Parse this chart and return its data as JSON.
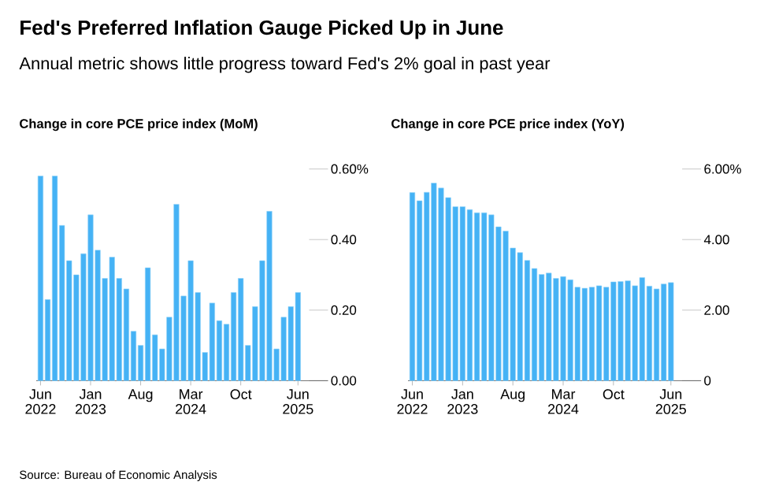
{
  "chart_data": [
    {
      "type": "bar",
      "title": "Fed's Preferred Inflation Gauge Picked Up in June",
      "subtitle": "Annual metric shows little progress toward Fed's 2% goal in past year",
      "ylabel": "Change in core PCE price index (MoM)",
      "annotations": [
        "Source: Bureau of Economic Analysis"
      ],
      "categories": [
        "Jun 2022",
        null,
        null,
        null,
        null,
        null,
        null,
        "Jan 2023",
        null,
        null,
        null,
        null,
        null,
        null,
        "Aug",
        null,
        null,
        null,
        null,
        null,
        null,
        "Mar 2024",
        null,
        null,
        null,
        null,
        null,
        null,
        "Oct",
        null,
        null,
        null,
        null,
        null,
        null,
        null,
        "Jun 2025"
      ],
      "values": [
        0.58,
        0.23,
        0.58,
        0.44,
        0.34,
        0.3,
        0.36,
        0.47,
        0.37,
        0.29,
        0.35,
        0.29,
        0.26,
        0.14,
        0.1,
        0.32,
        0.13,
        0.09,
        0.18,
        0.5,
        0.24,
        0.34,
        0.25,
        0.08,
        0.22,
        0.17,
        0.16,
        0.25,
        0.29,
        0.1,
        0.21,
        0.34,
        0.48,
        0.09,
        0.18,
        0.21,
        0.25
      ],
      "color": "#45b2f5",
      "ylim": [
        0,
        0.6
      ],
      "yticks": [
        {
          "value": 0,
          "label": "0.00"
        },
        {
          "value": 0.2,
          "label": "0.20"
        },
        {
          "value": 0.4,
          "label": "0.40"
        },
        {
          "value": 0.6,
          "label": "0.60%"
        }
      ]
    },
    {
      "type": "bar",
      "ylabel": "Change in core PCE price index (YoY)",
      "categories": [
        "Jun 2022",
        null,
        null,
        null,
        null,
        null,
        null,
        "Jan 2023",
        null,
        null,
        null,
        null,
        null,
        null,
        "Aug",
        null,
        null,
        null,
        null,
        null,
        null,
        "Mar 2024",
        null,
        null,
        null,
        null,
        null,
        null,
        "Oct",
        null,
        null,
        null,
        null,
        null,
        null,
        null,
        "Jun 2025"
      ],
      "values": [
        5.33,
        5.1,
        5.34,
        5.6,
        5.46,
        5.19,
        4.93,
        4.93,
        4.85,
        4.76,
        4.76,
        4.7,
        4.36,
        4.24,
        3.76,
        3.63,
        3.41,
        3.18,
        3.01,
        3.05,
        2.9,
        2.95,
        2.86,
        2.65,
        2.62,
        2.65,
        2.69,
        2.65,
        2.8,
        2.81,
        2.83,
        2.69,
        2.92,
        2.68,
        2.6,
        2.74,
        2.78
      ],
      "color": "#45b2f5",
      "ylim": [
        0,
        6
      ],
      "yticks": [
        0,
        {
          "value": 2,
          "label": "2.00"
        },
        {
          "value": 4,
          "label": "4.00"
        },
        {
          "value": 6,
          "label": "6.00%"
        }
      ]
    }
  ]
}
